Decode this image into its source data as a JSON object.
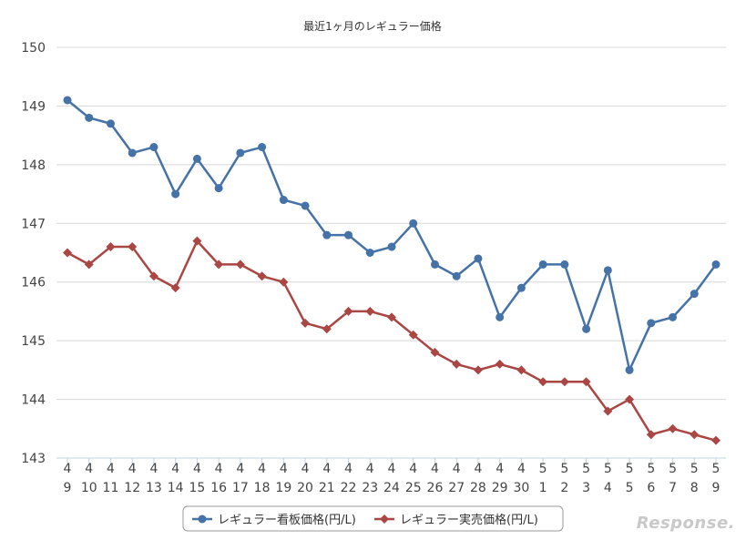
{
  "chart_data": {
    "type": "line",
    "title": "最近1ヶ月のレギュラー価格",
    "categories": [
      [
        "4",
        "9"
      ],
      [
        "4",
        "10"
      ],
      [
        "4",
        "11"
      ],
      [
        "4",
        "12"
      ],
      [
        "4",
        "13"
      ],
      [
        "4",
        "14"
      ],
      [
        "4",
        "15"
      ],
      [
        "4",
        "16"
      ],
      [
        "4",
        "17"
      ],
      [
        "4",
        "18"
      ],
      [
        "4",
        "19"
      ],
      [
        "4",
        "20"
      ],
      [
        "4",
        "21"
      ],
      [
        "4",
        "22"
      ],
      [
        "4",
        "23"
      ],
      [
        "4",
        "24"
      ],
      [
        "4",
        "25"
      ],
      [
        "4",
        "26"
      ],
      [
        "4",
        "27"
      ],
      [
        "4",
        "28"
      ],
      [
        "4",
        "29"
      ],
      [
        "4",
        "30"
      ],
      [
        "5",
        "1"
      ],
      [
        "5",
        "2"
      ],
      [
        "5",
        "3"
      ],
      [
        "5",
        "4"
      ],
      [
        "5",
        "5"
      ],
      [
        "5",
        "6"
      ],
      [
        "5",
        "7"
      ],
      [
        "5",
        "8"
      ],
      [
        "5",
        "9"
      ]
    ],
    "ylim": [
      143,
      150
    ],
    "yticks": [
      143,
      144,
      145,
      146,
      147,
      148,
      149,
      150
    ],
    "grid": true,
    "legend_position": "bottom",
    "series": [
      {
        "name": "レギュラー看板価格(円/L)",
        "color": "#4572a7",
        "marker": "circle",
        "values": [
          149.1,
          148.8,
          148.7,
          148.2,
          148.3,
          147.5,
          148.1,
          147.6,
          148.2,
          148.3,
          147.4,
          147.3,
          146.8,
          146.8,
          146.5,
          146.6,
          147.0,
          146.3,
          146.1,
          146.4,
          145.4,
          145.9,
          146.3,
          146.3,
          145.2,
          146.2,
          144.5,
          145.3,
          145.4,
          145.8,
          146.3
        ]
      },
      {
        "name": "レギュラー実売価格(円/L)",
        "color": "#aa4643",
        "marker": "diamond",
        "values": [
          146.5,
          146.3,
          146.6,
          146.6,
          146.1,
          145.9,
          146.7,
          146.3,
          146.3,
          146.1,
          146.0,
          145.3,
          145.2,
          145.5,
          145.5,
          145.4,
          145.1,
          144.8,
          144.6,
          144.5,
          144.6,
          144.5,
          144.3,
          144.3,
          144.3,
          143.8,
          144.0,
          143.4,
          143.5,
          143.4,
          143.3
        ]
      }
    ]
  },
  "watermark": "Response."
}
